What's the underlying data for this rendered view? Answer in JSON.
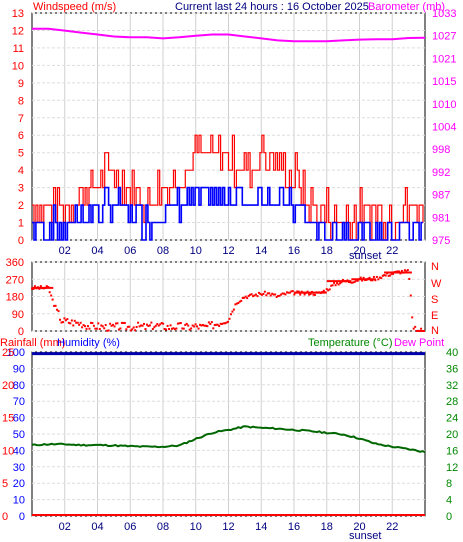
{
  "header": {
    "left_label": "Windspeed (m/s)",
    "center_label": "Current last 24 hours : 16 October 2025",
    "right_label": "Barometer (mb)"
  },
  "middle": {
    "right_labels": [
      "N",
      "W",
      "S",
      "E",
      "N"
    ]
  },
  "bottom_header": {
    "rainfall_label": "Rainfall (mm)",
    "humidity_label": "Humidity (%)",
    "temperature_label": "Temperature (°C)",
    "dewpoint_label": "Dew Point"
  },
  "sunset_label": "sunset",
  "colors": {
    "wind_gust": "#ff0000",
    "wind_avg": "#0000ff",
    "barometer": "#ff00ff",
    "direction": "#ff0000",
    "humidity": "#0000aa",
    "temperature": "#006600",
    "rainfall": "#ff0000",
    "dewpoint": "#ff00ff",
    "axis_green": "#008800",
    "axis_red": "#ff0000",
    "axis_blue": "#0000ff"
  },
  "chart_data": [
    {
      "type": "line",
      "x_ticks": [
        "02",
        "04",
        "06",
        "08",
        "10",
        "12",
        "14",
        "16",
        "18",
        "20",
        "22"
      ],
      "y_left_ticks": [
        "0",
        "1",
        "2",
        "3",
        "4",
        "5",
        "6",
        "7",
        "8",
        "9",
        "10",
        "11",
        "12",
        "13"
      ],
      "y_left_range": [
        0,
        13
      ],
      "y_right_ticks": [
        "975",
        "981",
        "987",
        "992",
        "998",
        "1004",
        "1010",
        "1015",
        "1021",
        "1027",
        "1033"
      ],
      "y_right_range": [
        975,
        1033
      ],
      "series": [
        {
          "name": "Windspeed",
          "axis": "left",
          "x": [
            0,
            1,
            2,
            3,
            4,
            5,
            6,
            7,
            8,
            9,
            10,
            11,
            12,
            13,
            14,
            15,
            16,
            17,
            18,
            19,
            20,
            21,
            22,
            23,
            24
          ],
          "values": [
            1.2,
            1.3,
            1.2,
            2.2,
            3.0,
            3.5,
            2.4,
            1.8,
            2.6,
            3.4,
            4.2,
            4.3,
            4.1,
            3.6,
            4.4,
            3.7,
            3.2,
            1.5,
            1.1,
            0.8,
            1.0,
            1.1,
            1.0,
            1.2,
            1.3
          ]
        },
        {
          "name": "Barometer",
          "axis": "right",
          "x": [
            0,
            1,
            2,
            3,
            4,
            5,
            6,
            7,
            8,
            9,
            10,
            11,
            12,
            13,
            14,
            15,
            16,
            17,
            18,
            19,
            20,
            21,
            22,
            23,
            24
          ],
          "values": [
            1029,
            1029,
            1028.5,
            1028,
            1027.5,
            1027,
            1026.8,
            1026.8,
            1026.5,
            1026.8,
            1027.2,
            1027.5,
            1027.5,
            1027,
            1026.5,
            1026,
            1025.8,
            1025.8,
            1025.8,
            1026,
            1026.2,
            1026.3,
            1026.3,
            1026.6,
            1026.7
          ]
        }
      ]
    },
    {
      "type": "scatter",
      "y_left_ticks": [
        "0",
        "90",
        "180",
        "270",
        "360"
      ],
      "y_left_range": [
        0,
        360
      ],
      "x": [
        0,
        0.5,
        1,
        1.3,
        1.8,
        2.5,
        3,
        3.5,
        4,
        4.5,
        5,
        5.5,
        6,
        6.5,
        7,
        7.5,
        8,
        8.5,
        9,
        9.5,
        10,
        10.5,
        11,
        11.5,
        12,
        12.5,
        13,
        13.5,
        14,
        14.5,
        15,
        15.5,
        16,
        16.5,
        17,
        17.5,
        18,
        18.5,
        19,
        19.5,
        20,
        20.5,
        21,
        21.5,
        22,
        22.5,
        23,
        23.3,
        23.6
      ],
      "values": [
        225,
        225,
        225,
        150,
        55,
        45,
        40,
        25,
        25,
        20,
        20,
        25,
        20,
        25,
        20,
        30,
        25,
        20,
        25,
        20,
        25,
        20,
        30,
        45,
        65,
        150,
        180,
        185,
        195,
        195,
        180,
        195,
        200,
        195,
        200,
        195,
        215,
        245,
        260,
        260,
        270,
        270,
        275,
        290,
        300,
        310,
        310,
        5,
        0
      ]
    },
    {
      "type": "line",
      "x_ticks": [
        "02",
        "04",
        "06",
        "08",
        "10",
        "12",
        "14",
        "16",
        "18",
        "20",
        "22"
      ],
      "y_left_ticks": [
        "0",
        "10",
        "20",
        "30",
        "40",
        "50",
        "60",
        "70",
        "80",
        "90",
        "100"
      ],
      "y_left_range": [
        0,
        100
      ],
      "y_rain_ticks": [
        "0",
        "5",
        "10",
        "15",
        "20",
        "25"
      ],
      "y_right_ticks": [
        "0",
        "4",
        "8",
        "12",
        "16",
        "20",
        "24",
        "28",
        "32",
        "36",
        "40"
      ],
      "y_right_range": [
        0,
        40
      ],
      "series": [
        {
          "name": "Humidity",
          "axis": "left",
          "x": [
            0,
            24
          ],
          "values": [
            99,
            99
          ]
        },
        {
          "name": "Temperature",
          "axis": "right",
          "x": [
            0,
            1,
            2,
            3,
            4,
            5,
            6,
            7,
            8,
            9,
            10,
            11,
            12,
            13,
            14,
            15,
            16,
            17,
            18,
            19,
            20,
            21,
            22,
            23,
            24
          ],
          "values": [
            17.3,
            17.5,
            17.5,
            17.3,
            17.3,
            17.2,
            17.0,
            16.9,
            16.9,
            17.2,
            18.8,
            20.3,
            21.0,
            21.8,
            21.5,
            21.3,
            21.0,
            20.7,
            20.3,
            19.9,
            18.9,
            17.6,
            16.9,
            16.3,
            15.6
          ]
        },
        {
          "name": "Rainfall",
          "axis": "rain",
          "x": [
            0,
            24
          ],
          "values": [
            0,
            0
          ]
        }
      ]
    }
  ]
}
